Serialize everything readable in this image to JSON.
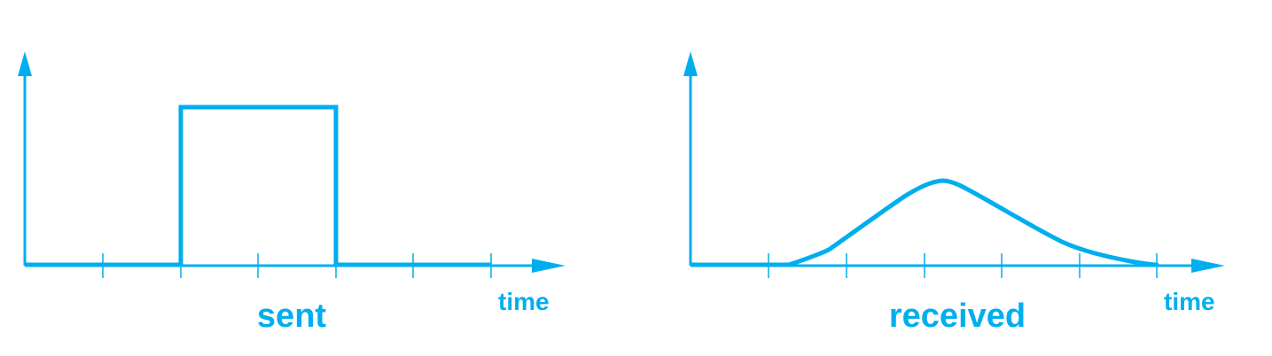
{
  "colors": {
    "accent": "#00aeef"
  },
  "panels": [
    {
      "id": "sent",
      "caption": "sent",
      "x_axis_label": "time",
      "waveform": "square-pulse"
    },
    {
      "id": "received",
      "caption": "received",
      "x_axis_label": "time",
      "waveform": "smoothed-pulse"
    }
  ]
}
